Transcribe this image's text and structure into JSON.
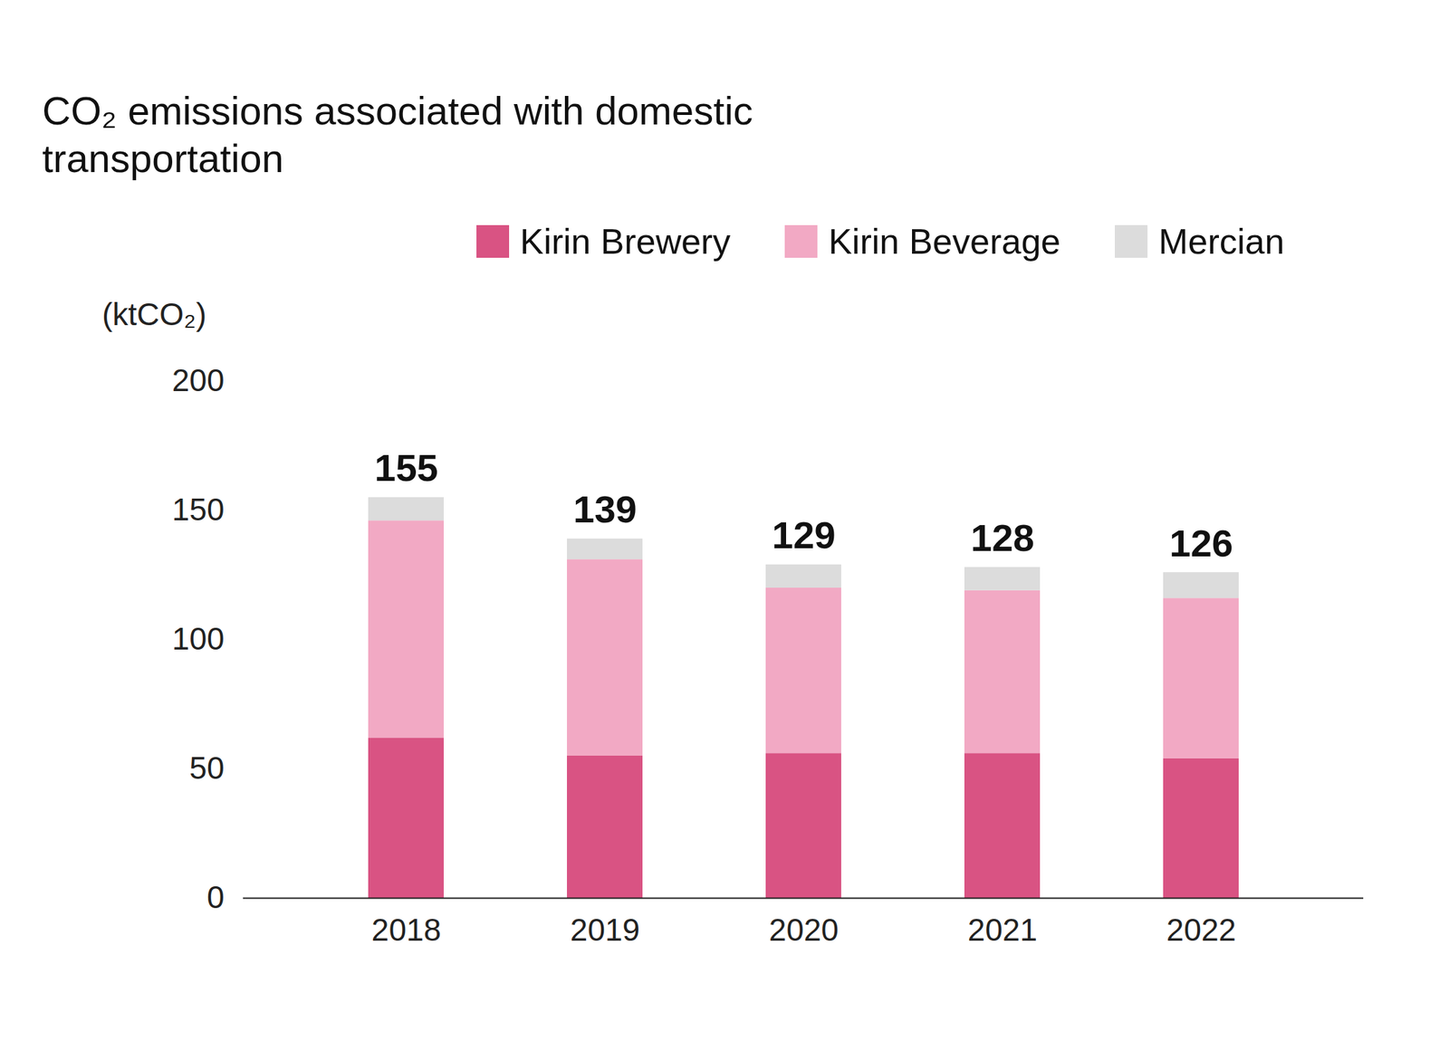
{
  "chart_data": {
    "type": "bar",
    "stacked": true,
    "title": "CO₂ emissions associated with domestic transportation",
    "y_label": "(ktCO₂)",
    "categories": [
      "2018",
      "2019",
      "2020",
      "2021",
      "2022"
    ],
    "series": [
      {
        "name": "Kirin Brewery",
        "color": "#d95383",
        "values": [
          62,
          55,
          56,
          56,
          54
        ]
      },
      {
        "name": "Kirin Beverage",
        "color": "#f2a9c4",
        "values": [
          84,
          76,
          64,
          63,
          62
        ]
      },
      {
        "name": "Mercian",
        "color": "#dcdcdc",
        "values": [
          9,
          8,
          9,
          9,
          10
        ]
      }
    ],
    "totals": [
      155,
      139,
      129,
      128,
      126
    ],
    "ylim": [
      0,
      200
    ],
    "yticks": [
      0,
      50,
      100,
      150,
      200
    ],
    "grid": false,
    "legend": "top-right"
  }
}
